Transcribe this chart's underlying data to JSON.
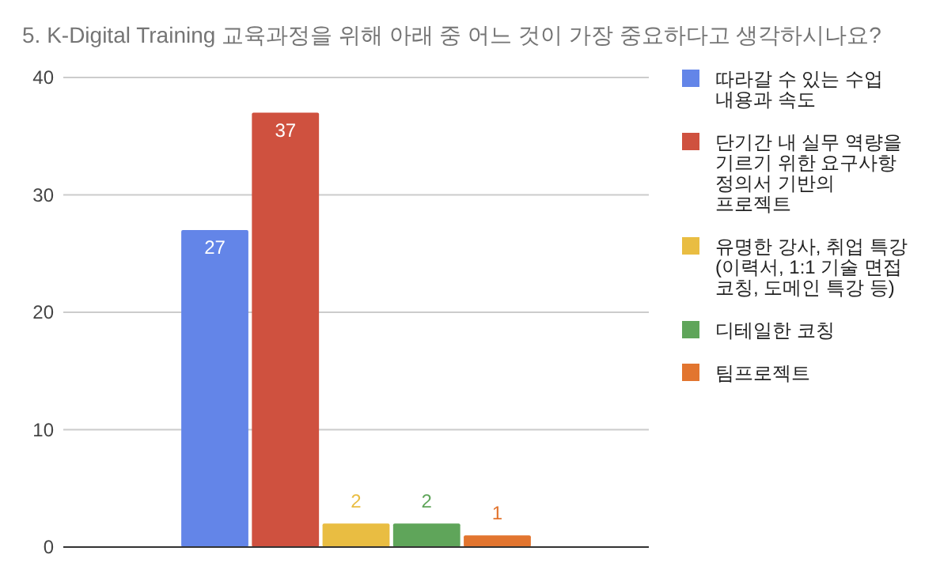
{
  "chart_data": {
    "type": "bar",
    "title": "5. K-Digital Training 교육과정을 위해 아래 중 어느 것이 가장 중요하다고 생각하시나요?",
    "categories": [
      null
    ],
    "series": [
      {
        "name": "따라갈 수 있는 수업 내용과 속도",
        "color": "#6385e8",
        "values": [
          27
        ]
      },
      {
        "name": "단기간 내 실무 역량을 기르기 위한 요구사항 정의서 기반의 프로젝트",
        "color": "#cf513f",
        "values": [
          37
        ]
      },
      {
        "name": "유명한 강사, 취업 특강 (이력서, 1:1 기술 면접 코칭, 도메인 특강 등)",
        "color": "#e9bd42",
        "values": [
          2
        ]
      },
      {
        "name": "디테일한 코칭",
        "color": "#5fa55a",
        "values": [
          2
        ]
      },
      {
        "name": "팀프로젝트",
        "color": "#e2752f",
        "values": [
          1
        ]
      }
    ],
    "ylim": [
      0,
      40
    ],
    "yticks": [
      0,
      10,
      20,
      30,
      40
    ],
    "grid": "y",
    "legend": "right",
    "data_labels": true
  }
}
